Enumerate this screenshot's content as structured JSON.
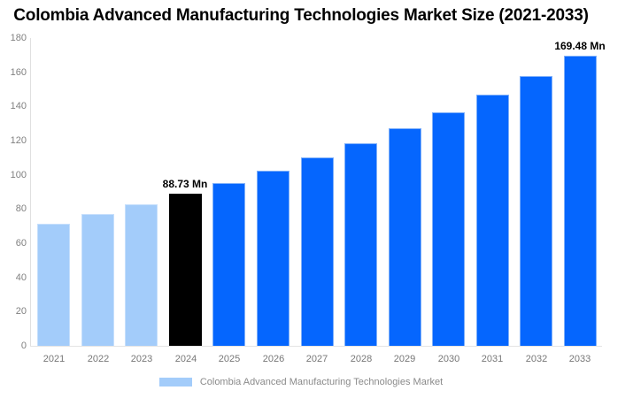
{
  "title": "Colombia Advanced Manufacturing Technologies Market Size (2021-2033)",
  "chart_data": {
    "type": "bar",
    "categories": [
      "2021",
      "2022",
      "2023",
      "2024",
      "2025",
      "2026",
      "2027",
      "2028",
      "2029",
      "2030",
      "2031",
      "2032",
      "2033"
    ],
    "values": [
      71.51,
      76.84,
      82.57,
      88.73,
      95.35,
      102.46,
      110.1,
      118.31,
      127.14,
      136.62,
      146.81,
      157.76,
      169.48
    ],
    "unit": "Mn",
    "title": "Colombia Advanced Manufacturing Technologies Market Size (2021-2033)",
    "xlabel": "",
    "ylabel": "",
    "ylim": [
      0,
      180
    ],
    "ytick_step": 20,
    "grid": false,
    "legend_position": "bottom",
    "bar_roles": [
      "historical",
      "historical",
      "historical",
      "base_year",
      "forecast",
      "forecast",
      "forecast",
      "forecast",
      "forecast",
      "forecast",
      "forecast",
      "forecast",
      "forecast"
    ],
    "colors": {
      "historical": "#a3ccfa",
      "base_year": "#000000",
      "forecast": "#0566fe",
      "axis_text": "#808080",
      "legend_text": "#8a8a8a"
    },
    "annotations": [
      {
        "index": 3,
        "text": "88.73 Mn"
      },
      {
        "index": 12,
        "text": "169.48 Mn"
      }
    ],
    "legend": [
      {
        "label": "Colombia Advanced Manufacturing Technologies Market",
        "color": "#a3ccfa"
      }
    ]
  }
}
